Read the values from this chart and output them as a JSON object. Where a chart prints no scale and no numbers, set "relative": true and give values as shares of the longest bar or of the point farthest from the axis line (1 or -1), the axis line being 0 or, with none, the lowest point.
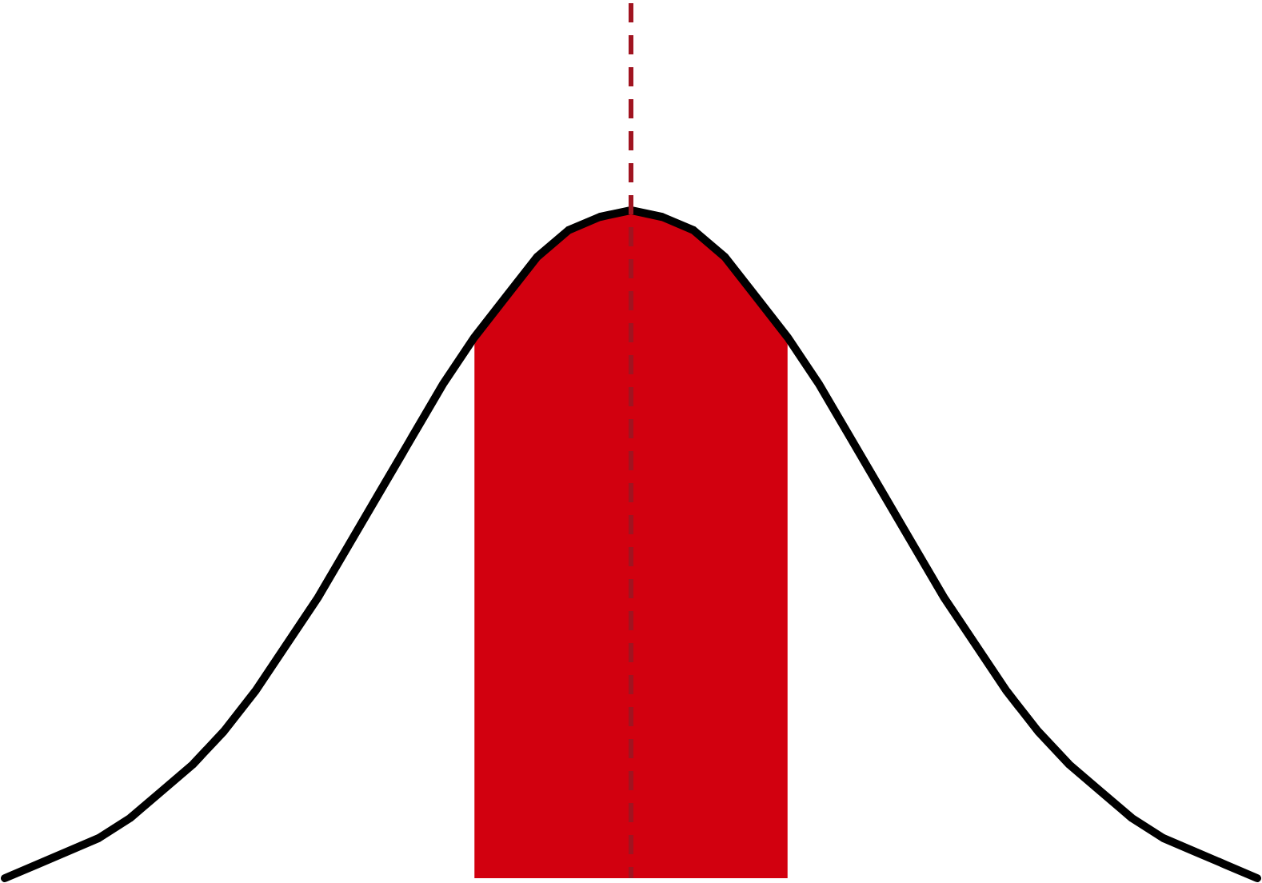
{
  "chart_data": {
    "type": "line",
    "relative": true,
    "categories": [
      null,
      null,
      null,
      null,
      null,
      null,
      null,
      null,
      null,
      null,
      null,
      null,
      null,
      null,
      null,
      null,
      null,
      null,
      null,
      null,
      null,
      null,
      null,
      null,
      null,
      null,
      null,
      null,
      null,
      null,
      null,
      null,
      null,
      null,
      null,
      null,
      null,
      null,
      null,
      null,
      null
    ],
    "series": [
      {
        "color": "#000000",
        "values": [
          0,
          0.02,
          0.04,
          0.06,
          0.09,
          0.13,
          0.17,
          0.22,
          0.28,
          0.35,
          0.42,
          0.5,
          0.58,
          0.66,
          0.74,
          0.81,
          0.87,
          0.93,
          0.97,
          0.99,
          1,
          0.99,
          0.97,
          0.93,
          0.87,
          0.81,
          0.74,
          0.66,
          0.58,
          0.5,
          0.42,
          0.35,
          0.28,
          0.22,
          0.17,
          0.13,
          0.09,
          0.06,
          0.04,
          0.02,
          0
        ]
      },
      {
        "type": "area",
        "color": "#d2000f",
        "values": [
          null,
          null,
          null,
          null,
          null,
          null,
          null,
          null,
          null,
          null,
          null,
          null,
          null,
          null,
          null,
          0.81,
          0.87,
          0.93,
          0.97,
          0.99,
          1,
          0.99,
          0.97,
          0.93,
          0.87,
          0.81,
          null,
          null,
          null,
          null,
          null,
          null,
          null,
          null,
          null,
          null,
          null,
          null,
          null,
          null,
          null
        ]
      }
    ]
  }
}
